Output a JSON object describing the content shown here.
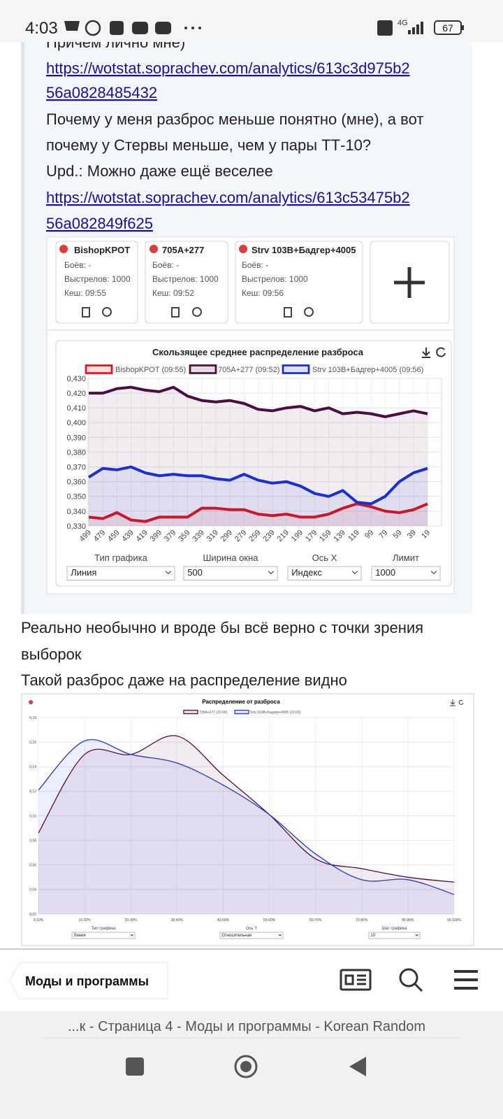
{
  "status_bar": {
    "time": "4:03",
    "network": "4G",
    "battery": "67"
  },
  "quote": {
    "lines": [
      "Причем лично мне)",
      "https://wotstat.soprachev.com/analytics/613c3d975b2",
      "56a0828485432",
      "Почему у меня разброс меньше понятно (мне), а вот",
      "почему у Стервы меньше, чем у пары ТТ-10?",
      "Upd.: Можно даже ещё веселее",
      "https://wotstat.soprachev.com/analytics/613c53475b2",
      "56a082849f625"
    ]
  },
  "image_1": {
    "cards": [
      {
        "name": "BishopKPOT",
        "battles": "Боёв: -",
        "shots": "Выстрелов: 1000",
        "cache": "Кеш: 09:55"
      },
      {
        "name": "705A+277",
        "battles": "Боёв: -",
        "shots": "Выстрелов: 1000",
        "cache": "Кеш: 09:52"
      },
      {
        "name": "Strv 103B+Бадгер+4005",
        "battles": "Боёв: -",
        "shots": "Выстрелов: 1000",
        "cache": "Кеш: 09:56"
      }
    ],
    "controls": [
      {
        "label": "Тип графика",
        "value": "Линия"
      },
      {
        "label": "Ширина окна",
        "value": "500"
      },
      {
        "label": "Ось X",
        "value": "Индекс"
      },
      {
        "label": "Лимит",
        "value": "1000"
      }
    ]
  },
  "reply": {
    "lines": [
      "Реально необычно и вроде бы всё верно с точки зрения",
      "выборок",
      "Такой разброс даже на распределение видно"
    ]
  },
  "image_2": {
    "controls": [
      {
        "label": "Тип графика",
        "value": "Линия"
      },
      {
        "label": "Ось Y",
        "value": "Относительная"
      },
      {
        "label": "Шаг графика",
        "value": "10"
      }
    ]
  },
  "bottom_bar": {
    "section": "Моды и программы",
    "page_title": "...к - Страница 4 - Моды и программы - Korean Random"
  },
  "chart_data": [
    {
      "type": "line",
      "title": "Скользящее среднее распределение разброса",
      "smooth": false,
      "grid": true,
      "categories": [
        "499",
        "479",
        "459",
        "439",
        "419",
        "399",
        "379",
        "359",
        "339",
        "319",
        "299",
        "279",
        "259",
        "239",
        "219",
        "199",
        "179",
        "159",
        "139",
        "119",
        "99",
        "79",
        "59",
        "39",
        "19"
      ],
      "ylim": [
        0.33,
        0.43
      ],
      "yticks": [
        {
          "value": 0.33,
          "label": "0,330"
        },
        {
          "value": 0.34,
          "label": "0,340"
        },
        {
          "value": 0.35,
          "label": "0,350"
        },
        {
          "value": 0.36,
          "label": "0,360"
        },
        {
          "value": 0.37,
          "label": "0,370"
        },
        {
          "value": 0.38,
          "label": "0,380"
        },
        {
          "value": 0.39,
          "label": "0,390"
        },
        {
          "value": 0.4,
          "label": "0,400"
        },
        {
          "value": 0.41,
          "label": "0,410"
        },
        {
          "value": 0.42,
          "label": "0,420"
        },
        {
          "value": 0.43,
          "label": "0,430"
        }
      ],
      "series": [
        {
          "name": "BishopKPOT (09:55)",
          "color": "#e4161b",
          "values": [
            0.336,
            0.335,
            0.339,
            0.334,
            0.333,
            0.336,
            0.336,
            0.336,
            0.342,
            0.342,
            0.341,
            0.341,
            0.338,
            0.337,
            0.338,
            0.336,
            0.336,
            0.338,
            0.342,
            0.345,
            0.343,
            0.34,
            0.339,
            0.341,
            0.345
          ]
        },
        {
          "name": "705A+277 (09:52)",
          "color": "#4b0f3f",
          "values": [
            0.42,
            0.42,
            0.423,
            0.424,
            0.422,
            0.421,
            0.424,
            0.418,
            0.415,
            0.414,
            0.415,
            0.413,
            0.409,
            0.408,
            0.41,
            0.411,
            0.408,
            0.41,
            0.406,
            0.407,
            0.406,
            0.404,
            0.406,
            0.408,
            0.406
          ]
        },
        {
          "name": "Strv 103B+Бадгер+4005 (09:56)",
          "color": "#1a2fd6",
          "values": [
            0.363,
            0.369,
            0.368,
            0.37,
            0.366,
            0.364,
            0.365,
            0.364,
            0.364,
            0.362,
            0.361,
            0.365,
            0.361,
            0.359,
            0.36,
            0.357,
            0.352,
            0.35,
            0.354,
            0.346,
            0.345,
            0.35,
            0.36,
            0.366,
            0.369
          ]
        }
      ]
    },
    {
      "type": "line",
      "title": "Распределение от разброса",
      "smooth": true,
      "grid": true,
      "categories": [
        "0-10%",
        "10-20%",
        "20-30%",
        "30-40%",
        "40-50%",
        "50-60%",
        "60-70%",
        "70-80%",
        "80-90%",
        "90-100%"
      ],
      "ylim": [
        0.02,
        0.18
      ],
      "yticks": [
        {
          "value": 0.02,
          "label": "0,02"
        },
        {
          "value": 0.04,
          "label": "0,04"
        },
        {
          "value": 0.06,
          "label": "0,06"
        },
        {
          "value": 0.08,
          "label": "0,08"
        },
        {
          "value": 0.1,
          "label": "0,10"
        },
        {
          "value": 0.12,
          "label": "0,12"
        },
        {
          "value": 0.14,
          "label": "0,14"
        },
        {
          "value": 0.16,
          "label": "0,16"
        },
        {
          "value": 0.18,
          "label": "0,18"
        }
      ],
      "series": [
        {
          "name": "705A+277 (22:00)",
          "color": "#4b0f3f",
          "values": [
            0.086,
            0.15,
            0.15,
            0.165,
            0.133,
            0.101,
            0.065,
            0.057,
            0.05,
            0.046
          ]
        },
        {
          "name": "Strv 103B+Бадгер+4005 (22:00)",
          "color": "#2637d4",
          "values": [
            0.121,
            0.161,
            0.15,
            0.143,
            0.125,
            0.101,
            0.069,
            0.048,
            0.048,
            0.036
          ]
        }
      ]
    }
  ]
}
